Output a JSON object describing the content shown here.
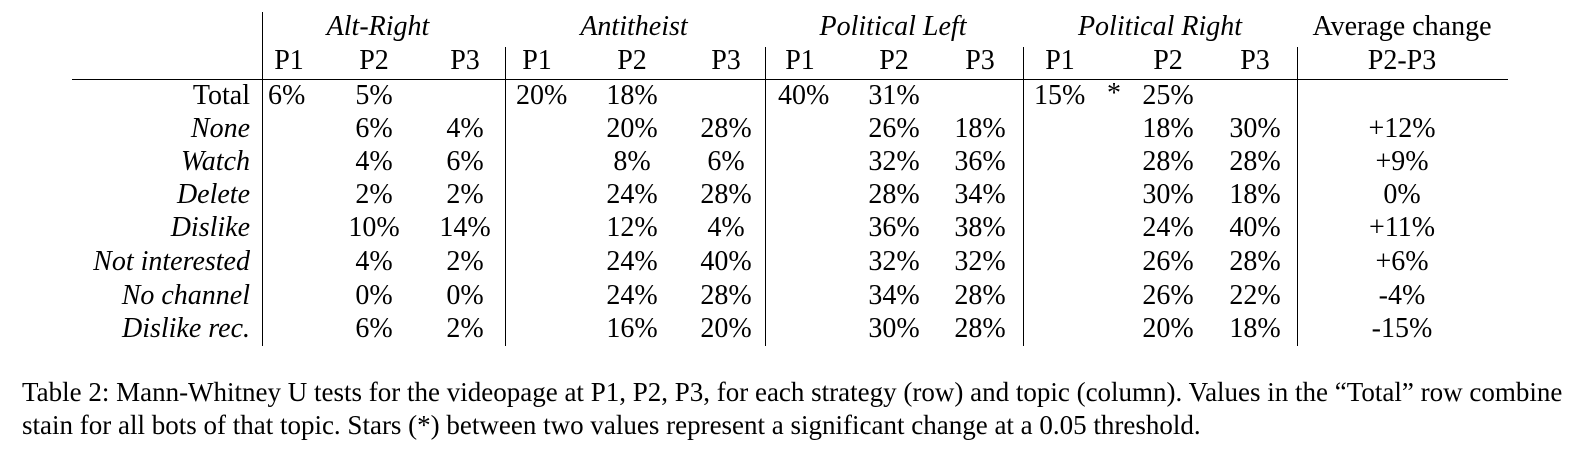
{
  "table": {
    "stub_header": "",
    "groups": [
      {
        "label": "Alt-Right",
        "italic": true
      },
      {
        "label": "Antitheist",
        "italic": true
      },
      {
        "label": "Political Left",
        "italic": true
      },
      {
        "label": "Political Right",
        "italic": true
      },
      {
        "label": "Average change",
        "italic": false
      }
    ],
    "subheaders": [
      "P1",
      "P2",
      "P3",
      "P1",
      "P2",
      "P3",
      "P1",
      "P2",
      "P3",
      "P1",
      "P2",
      "P3",
      "P2-P3"
    ],
    "rows": [
      {
        "label": "Total",
        "italic": false,
        "cells": [
          "6%",
          "5%",
          "",
          "20%",
          "18%",
          "",
          "40%",
          "31%",
          "",
          "15%",
          "25%",
          "",
          ""
        ],
        "star": "*"
      },
      {
        "label": "None",
        "italic": true,
        "cells": [
          "",
          "6%",
          "4%",
          "",
          "20%",
          "28%",
          "",
          "26%",
          "18%",
          "",
          "18%",
          "30%",
          "+12%"
        ]
      },
      {
        "label": "Watch",
        "italic": true,
        "cells": [
          "",
          "4%",
          "6%",
          "",
          "8%",
          "6%",
          "",
          "32%",
          "36%",
          "",
          "28%",
          "28%",
          "+9%"
        ]
      },
      {
        "label": "Delete",
        "italic": true,
        "cells": [
          "",
          "2%",
          "2%",
          "",
          "24%",
          "28%",
          "",
          "28%",
          "34%",
          "",
          "30%",
          "18%",
          "0%"
        ]
      },
      {
        "label": "Dislike",
        "italic": true,
        "cells": [
          "",
          "10%",
          "14%",
          "",
          "12%",
          "4%",
          "",
          "36%",
          "38%",
          "",
          "24%",
          "40%",
          "+11%"
        ]
      },
      {
        "label": "Not interested",
        "italic": true,
        "cells": [
          "",
          "4%",
          "2%",
          "",
          "24%",
          "40%",
          "",
          "32%",
          "32%",
          "",
          "26%",
          "28%",
          "+6%"
        ]
      },
      {
        "label": "No channel",
        "italic": true,
        "cells": [
          "",
          "0%",
          "0%",
          "",
          "24%",
          "28%",
          "",
          "34%",
          "28%",
          "",
          "26%",
          "22%",
          "-4%"
        ]
      },
      {
        "label": "Dislike rec.",
        "italic": true,
        "cells": [
          "",
          "6%",
          "2%",
          "",
          "16%",
          "20%",
          "",
          "30%",
          "28%",
          "",
          "20%",
          "18%",
          "-15%"
        ]
      }
    ]
  },
  "caption": "Table 2: Mann-Whitney U tests for the videopage at P1, P2, P3, for each strategy (row) and topic (column). Values in the “Total” row combine stain for all bots of that topic. Stars (*) between two values represent a significant change at a 0.05 threshold."
}
